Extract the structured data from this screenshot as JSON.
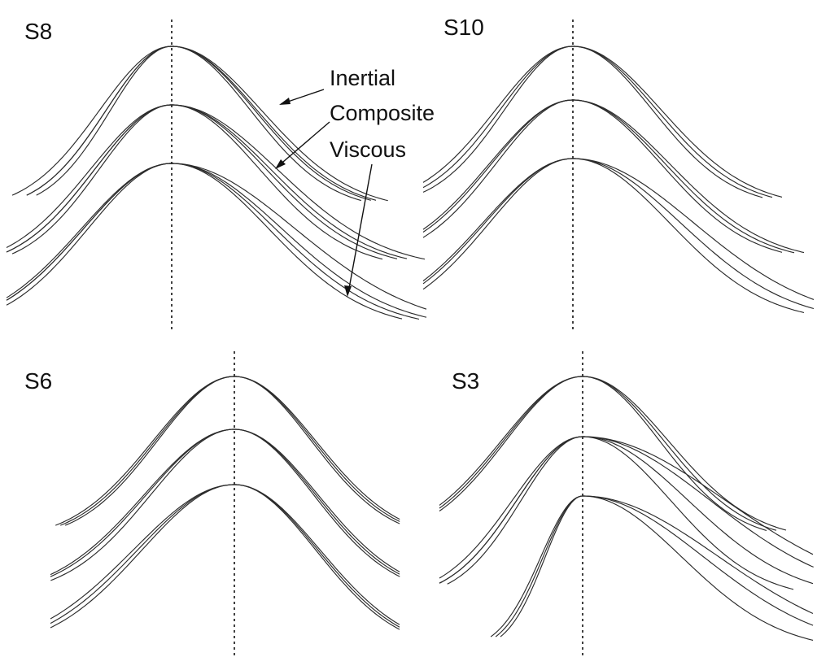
{
  "chart_data": [
    {
      "type": "line",
      "panel": "S8",
      "annotations": [
        "Inertial",
        "Composite",
        "Viscous"
      ],
      "series": [
        {
          "shape": "gaussian",
          "ascent_sigma": [
            0.3,
            0.33,
            0.28
          ],
          "descent_sigma": [
            0.36,
            0.39,
            0.41,
            0.38
          ]
        },
        {
          "shape": "gaussian",
          "ascent_sigma": [
            0.35,
            0.37,
            0.33
          ],
          "descent_sigma": [
            0.4,
            0.45,
            0.48,
            0.43
          ]
        },
        {
          "shape": "gaussian",
          "ascent_sigma": [
            0.4,
            0.41,
            0.38
          ],
          "descent_sigma": [
            0.44,
            0.5,
            0.56,
            0.47
          ]
        }
      ]
    },
    {
      "type": "line",
      "panel": "S10",
      "annotations": [],
      "series": [
        {
          "shape": "gaussian",
          "ascent_sigma": [
            0.33,
            0.35,
            0.31
          ],
          "descent_sigma": [
            0.36,
            0.38,
            0.4
          ]
        },
        {
          "shape": "gaussian",
          "ascent_sigma": [
            0.37,
            0.38,
            0.35
          ],
          "descent_sigma": [
            0.4,
            0.42,
            0.44
          ]
        },
        {
          "shape": "gaussian",
          "ascent_sigma": [
            0.4,
            0.41,
            0.38
          ],
          "descent_sigma": [
            0.44,
            0.49,
            0.55
          ]
        }
      ]
    },
    {
      "type": "line",
      "panel": "S6",
      "annotations": [],
      "series": [
        {
          "shape": "gaussian",
          "ascent_sigma": [
            0.36,
            0.37,
            0.35
          ],
          "descent_sigma": [
            0.36,
            0.37,
            0.35
          ]
        },
        {
          "shape": "gaussian",
          "ascent_sigma": [
            0.4,
            0.41,
            0.38
          ],
          "descent_sigma": [
            0.37,
            0.38,
            0.36
          ]
        },
        {
          "shape": "gaussian",
          "ascent_sigma": [
            0.44,
            0.42,
            0.46
          ],
          "descent_sigma": [
            0.38,
            0.39,
            0.37
          ]
        }
      ]
    },
    {
      "type": "line",
      "panel": "S3",
      "annotations": [],
      "series": [
        {
          "shape": "gaussian",
          "ascent_sigma": [
            0.36,
            0.37,
            0.35
          ],
          "descent_sigma": [
            0.35,
            0.37,
            0.39
          ]
        },
        {
          "shape": "gaussian",
          "ascent_sigma": [
            0.3,
            0.32,
            0.28
          ],
          "descent_sigma": [
            0.4,
            0.48,
            0.58,
            0.65
          ]
        },
        {
          "shape": "gaussian",
          "ascent_sigma": [
            0.18,
            0.19,
            0.17
          ],
          "descent_sigma": [
            0.45,
            0.55,
            0.62
          ]
        }
      ]
    }
  ]
}
